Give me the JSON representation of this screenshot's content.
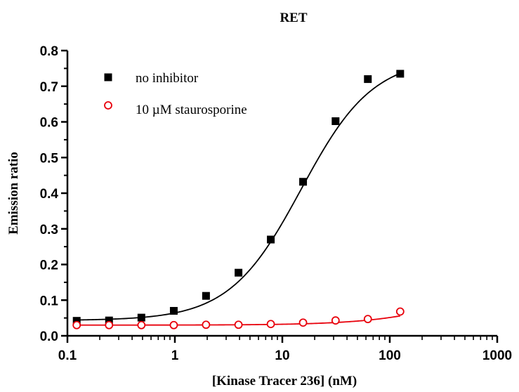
{
  "chart_data": {
    "type": "scatter",
    "title": "RET",
    "xlabel": "[Kinase Tracer 236] (nM)",
    "ylabel": "Emission ratio",
    "xscale": "log",
    "xlim": [
      0.1,
      1000
    ],
    "ylim": [
      0.0,
      0.8
    ],
    "x_ticks": [
      {
        "value": 0.1,
        "label": "0.1"
      },
      {
        "value": 1,
        "label": "1"
      },
      {
        "value": 10,
        "label": "10"
      },
      {
        "value": 100,
        "label": "100"
      },
      {
        "value": 1000,
        "label": "1000"
      }
    ],
    "y_ticks": [
      {
        "value": 0.0,
        "label": "0.0"
      },
      {
        "value": 0.1,
        "label": "0.1"
      },
      {
        "value": 0.2,
        "label": "0.2"
      },
      {
        "value": 0.3,
        "label": "0.3"
      },
      {
        "value": 0.4,
        "label": "0.4"
      },
      {
        "value": 0.5,
        "label": "0.5"
      },
      {
        "value": 0.6,
        "label": "0.6"
      },
      {
        "value": 0.7,
        "label": "0.7"
      },
      {
        "value": 0.8,
        "label": "0.8"
      }
    ],
    "grid": false,
    "legend_position": "top-left",
    "series": [
      {
        "name": "no inhibitor",
        "marker": "filled-square",
        "color": "#000000",
        "x": [
          0.122,
          0.244,
          0.488,
          0.977,
          1.95,
          3.91,
          7.81,
          15.6,
          31.3,
          62.5,
          125
        ],
        "y": [
          0.042,
          0.043,
          0.051,
          0.07,
          0.112,
          0.177,
          0.27,
          0.432,
          0.602,
          0.72,
          0.735
        ],
        "fit": {
          "bottom": 0.043,
          "top": 0.78,
          "ec50": 15.0,
          "hill": 1.3
        }
      },
      {
        "name": "10 µM staurosporine",
        "marker": "open-circle",
        "color": "#e8000b",
        "x": [
          0.122,
          0.244,
          0.488,
          0.977,
          1.95,
          3.91,
          7.81,
          15.6,
          31.3,
          62.5,
          125
        ],
        "y": [
          0.03,
          0.03,
          0.03,
          0.03,
          0.031,
          0.031,
          0.033,
          0.037,
          0.043,
          0.047,
          0.068
        ],
        "fit": {
          "bottom": 0.03,
          "top": 0.2,
          "ec50": 700,
          "hill": 1.0
        }
      }
    ]
  }
}
